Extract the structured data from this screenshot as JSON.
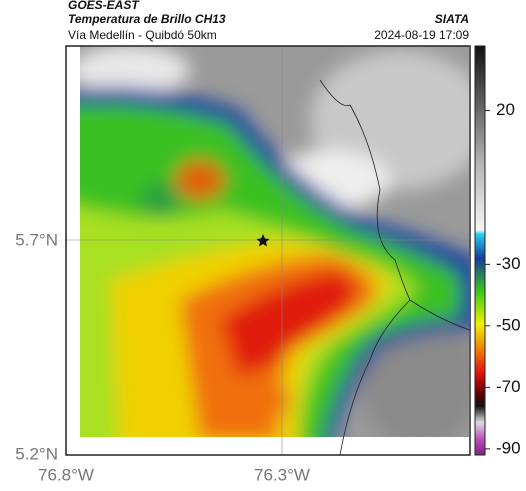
{
  "header": {
    "satellite": "GOES-EAST",
    "title": "Temperatura de Brillo CH13",
    "subtitle": "Vía Medellín - Quibdó 50km",
    "source": "SIATA",
    "timestamp": "2024-08-19 17:09"
  },
  "map": {
    "lat_labels": [
      "5.7°N",
      "5.2°N"
    ],
    "lon_labels": [
      "76.8°W",
      "76.3°W"
    ]
  },
  "colorbar": {
    "lim": [
      41,
      -92
    ],
    "ticks": [
      20,
      -30,
      -50,
      -70,
      -90
    ]
  }
}
